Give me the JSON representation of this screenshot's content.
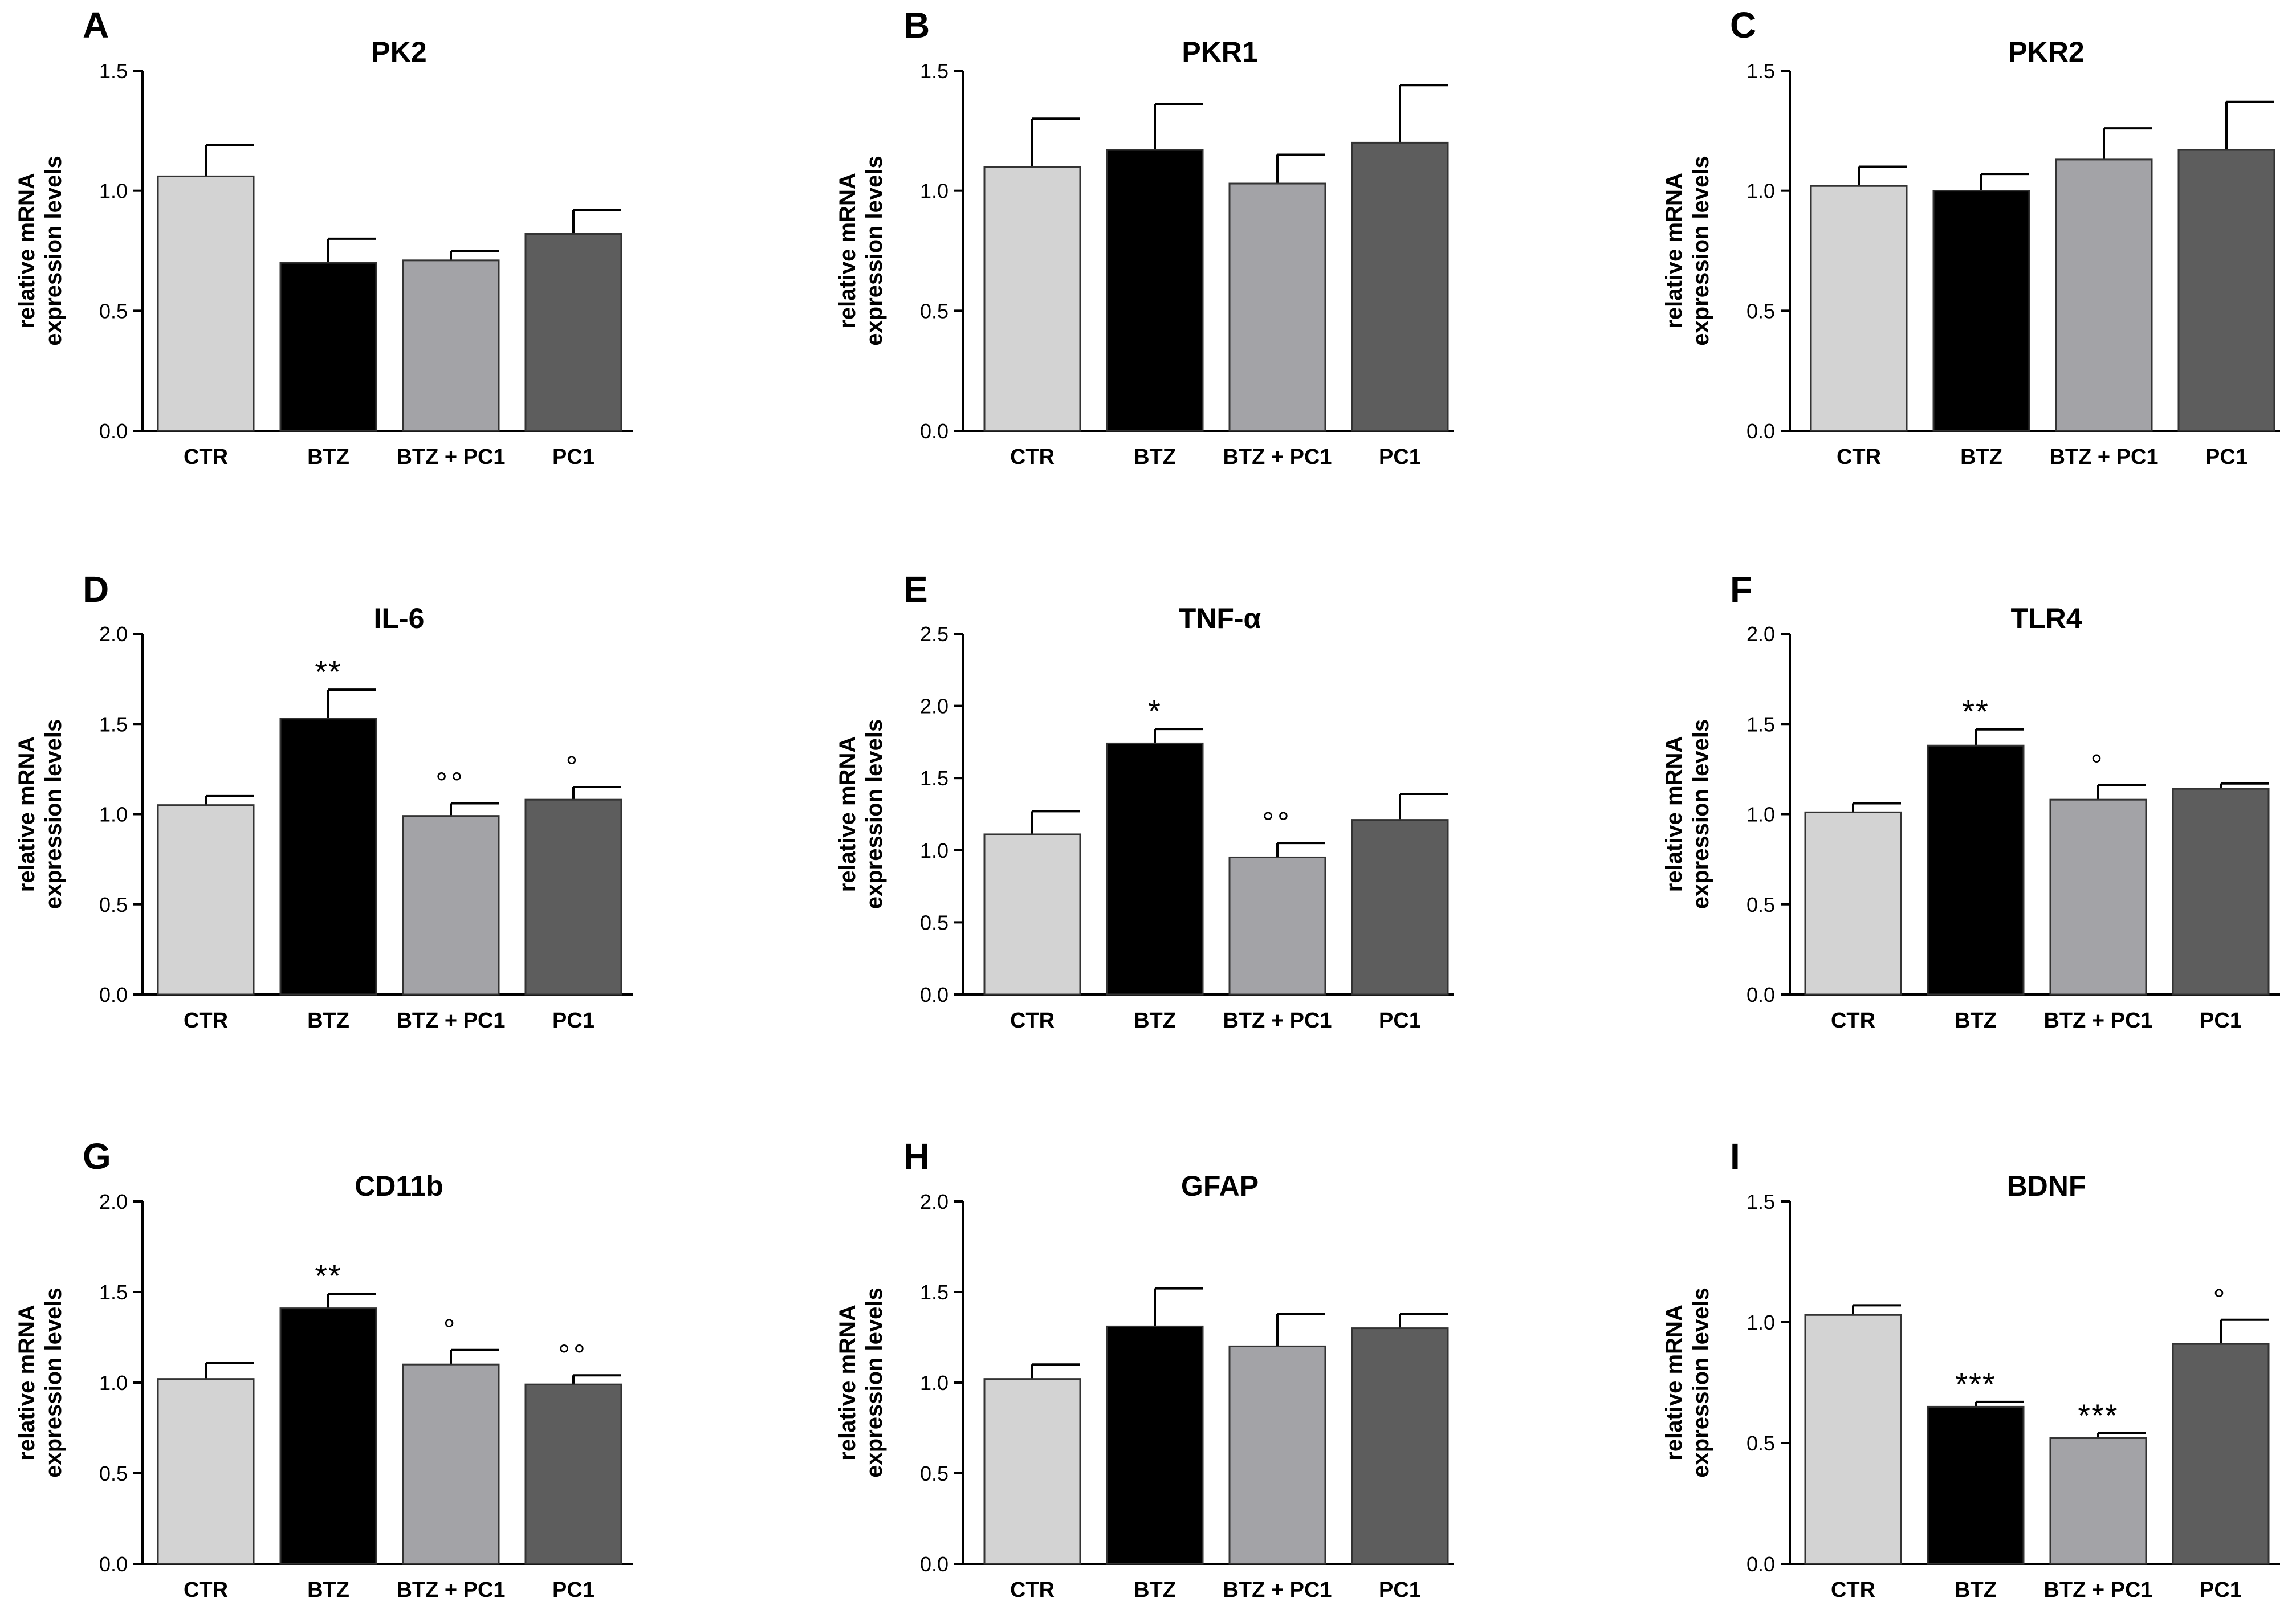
{
  "colors": {
    "CTR": "#d3d3d3",
    "BTZ": "#000000",
    "BTZ + PC1": "#a3a3a7",
    "PC1": "#5d5d5d",
    "axis": "#000000",
    "bar_edge": "#333333"
  },
  "chart_data": [
    {
      "panel": "A",
      "title": "PK2",
      "type": "bar",
      "ylabel": [
        "relative mRNA",
        "expression levels"
      ],
      "categories": [
        "CTR",
        "BTZ",
        "BTZ + PC1",
        "PC1"
      ],
      "ylim": [
        0,
        1.5
      ],
      "yticks": [
        "0.0",
        "0.5",
        "1.0",
        "1.5"
      ],
      "ytick_values": [
        0,
        0.5,
        1.0,
        1.5
      ],
      "values": [
        1.06,
        0.7,
        0.71,
        0.82
      ],
      "errors": [
        0.13,
        0.1,
        0.04,
        0.1
      ],
      "annotations": [
        "",
        "",
        "",
        ""
      ]
    },
    {
      "panel": "B",
      "title": "PKR1",
      "type": "bar",
      "ylabel": [
        "relative mRNA",
        "expression levels"
      ],
      "categories": [
        "CTR",
        "BTZ",
        "BTZ + PC1",
        "PC1"
      ],
      "ylim": [
        0,
        1.5
      ],
      "yticks": [
        "0.0",
        "0.5",
        "1.0",
        "1.5"
      ],
      "ytick_values": [
        0,
        0.5,
        1.0,
        1.5
      ],
      "values": [
        1.1,
        1.17,
        1.03,
        1.2
      ],
      "errors": [
        0.2,
        0.19,
        0.12,
        0.24
      ],
      "annotations": [
        "",
        "",
        "",
        ""
      ]
    },
    {
      "panel": "C",
      "title": "PKR2",
      "type": "bar",
      "ylabel": [
        "relative mRNA",
        "expression levels"
      ],
      "categories": [
        "CTR",
        "BTZ",
        "BTZ + PC1",
        "PC1"
      ],
      "ylim": [
        0,
        1.5
      ],
      "yticks": [
        "0.0",
        "0.5",
        "1.0",
        "1.5"
      ],
      "ytick_values": [
        0,
        0.5,
        1.0,
        1.5
      ],
      "values": [
        1.02,
        1.0,
        1.13,
        1.17
      ],
      "errors": [
        0.08,
        0.07,
        0.13,
        0.2
      ],
      "annotations": [
        "",
        "",
        "",
        ""
      ]
    },
    {
      "panel": "D",
      "title": "IL-6",
      "type": "bar",
      "ylabel": [
        "relative mRNA",
        "expression levels"
      ],
      "categories": [
        "CTR",
        "BTZ",
        "BTZ + PC1",
        "PC1"
      ],
      "ylim": [
        0,
        2.0
      ],
      "yticks": [
        "0.0",
        "0.5",
        "1.0",
        "1.5",
        "2.0"
      ],
      "ytick_values": [
        0,
        0.5,
        1.0,
        1.5,
        2.0
      ],
      "values": [
        1.05,
        1.53,
        0.99,
        1.08
      ],
      "errors": [
        0.05,
        0.16,
        0.07,
        0.07
      ],
      "annotations": [
        "",
        "**",
        "°°",
        "°"
      ]
    },
    {
      "panel": "E",
      "title": "TNF-α",
      "type": "bar",
      "ylabel": [
        "relative mRNA",
        "expression levels"
      ],
      "categories": [
        "CTR",
        "BTZ",
        "BTZ + PC1",
        "PC1"
      ],
      "ylim": [
        0,
        2.5
      ],
      "yticks": [
        "0.0",
        "0.5",
        "1.0",
        "1.5",
        "2.0",
        "2.5"
      ],
      "ytick_values": [
        0,
        0.5,
        1.0,
        1.5,
        2.0,
        2.5
      ],
      "values": [
        1.11,
        1.74,
        0.95,
        1.21
      ],
      "errors": [
        0.16,
        0.1,
        0.1,
        0.18
      ],
      "annotations": [
        "",
        "*",
        "°°",
        ""
      ]
    },
    {
      "panel": "F",
      "title": "TLR4",
      "type": "bar",
      "ylabel": [
        "relative mRNA",
        "expression levels"
      ],
      "categories": [
        "CTR",
        "BTZ",
        "BTZ + PC1",
        "PC1"
      ],
      "ylim": [
        0,
        2.0
      ],
      "yticks": [
        "0.0",
        "0.5",
        "1.0",
        "1.5",
        "2.0"
      ],
      "ytick_values": [
        0,
        0.5,
        1.0,
        1.5,
        2.0
      ],
      "values": [
        1.01,
        1.38,
        1.08,
        1.14
      ],
      "errors": [
        0.05,
        0.09,
        0.08,
        0.03
      ],
      "annotations": [
        "",
        "**",
        "°",
        ""
      ]
    },
    {
      "panel": "G",
      "title": "CD11b",
      "type": "bar",
      "ylabel": [
        "relative mRNA",
        "expression levels"
      ],
      "categories": [
        "CTR",
        "BTZ",
        "BTZ + PC1",
        "PC1"
      ],
      "ylim": [
        0,
        2.0
      ],
      "yticks": [
        "0.0",
        "0.5",
        "1.0",
        "1.5",
        "2.0"
      ],
      "ytick_values": [
        0,
        0.5,
        1.0,
        1.5,
        2.0
      ],
      "values": [
        1.02,
        1.41,
        1.1,
        0.99
      ],
      "errors": [
        0.09,
        0.08,
        0.08,
        0.05
      ],
      "annotations": [
        "",
        "**",
        "°",
        "°°"
      ]
    },
    {
      "panel": "H",
      "title": "GFAP",
      "type": "bar",
      "ylabel": [
        "relative mRNA",
        "expression levels"
      ],
      "categories": [
        "CTR",
        "BTZ",
        "BTZ + PC1",
        "PC1"
      ],
      "ylim": [
        0,
        2.0
      ],
      "yticks": [
        "0.0",
        "0.5",
        "1.0",
        "1.5",
        "2.0"
      ],
      "ytick_values": [
        0,
        0.5,
        1.0,
        1.5,
        2.0
      ],
      "values": [
        1.02,
        1.31,
        1.2,
        1.3
      ],
      "errors": [
        0.08,
        0.21,
        0.18,
        0.08
      ],
      "annotations": [
        "",
        "",
        "",
        ""
      ]
    },
    {
      "panel": "I",
      "title": "BDNF",
      "type": "bar",
      "ylabel": [
        "relative mRNA",
        "expression levels"
      ],
      "categories": [
        "CTR",
        "BTZ",
        "BTZ + PC1",
        "PC1"
      ],
      "ylim": [
        0,
        1.5
      ],
      "yticks": [
        "0.0",
        "0.5",
        "1.0",
        "1.5"
      ],
      "ytick_values": [
        0,
        0.5,
        1.0,
        1.5
      ],
      "values": [
        1.03,
        0.65,
        0.52,
        0.91
      ],
      "errors": [
        0.04,
        0.02,
        0.02,
        0.1
      ],
      "annotations": [
        "",
        "***",
        "***",
        "°"
      ]
    }
  ]
}
